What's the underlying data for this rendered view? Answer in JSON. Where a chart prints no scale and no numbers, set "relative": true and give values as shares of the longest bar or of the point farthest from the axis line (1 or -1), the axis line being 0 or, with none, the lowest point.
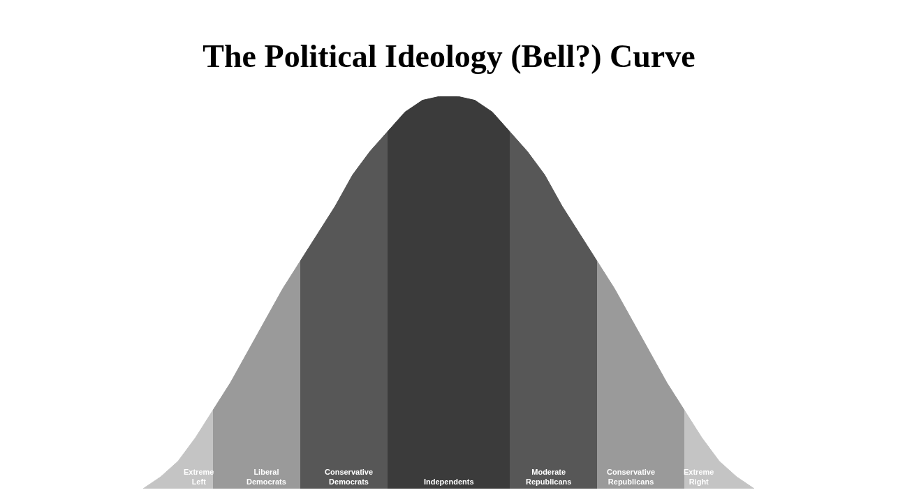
{
  "chart_data": {
    "type": "area",
    "title": "The Political Ideology (Bell?) Curve",
    "relative": true,
    "categories": [
      null,
      null,
      null,
      null,
      null,
      null,
      null,
      null,
      null,
      null,
      null,
      null,
      null,
      null,
      null,
      null,
      null,
      null,
      null,
      null,
      null,
      null,
      null,
      null,
      null,
      null,
      null,
      null,
      null,
      null,
      null,
      null,
      null,
      null,
      null,
      null
    ],
    "series": [
      {
        "name": "Extreme Left",
        "color": "#c4c4c4",
        "values": [
          0,
          0.03,
          0.07,
          0.13,
          0.2,
          null,
          null,
          null,
          null,
          null,
          null,
          null,
          null,
          null,
          null,
          null,
          null,
          null,
          null,
          null,
          null,
          null,
          null,
          null,
          null,
          null,
          null,
          null,
          null,
          null,
          null,
          null,
          null,
          null,
          null,
          null
        ]
      },
      {
        "name": "Liberal Democrats",
        "color": "#9a9a9a",
        "values": [
          null,
          null,
          null,
          null,
          0.2,
          0.27,
          0.35,
          0.43,
          0.51,
          0.58,
          null,
          null,
          null,
          null,
          null,
          null,
          null,
          null,
          null,
          null,
          null,
          null,
          null,
          null,
          null,
          null,
          null,
          null,
          null,
          null,
          null,
          null,
          null,
          null,
          null,
          null
        ]
      },
      {
        "name": "Conservative Democrats",
        "color": "#575757",
        "values": [
          null,
          null,
          null,
          null,
          null,
          null,
          null,
          null,
          null,
          0.58,
          0.65,
          0.72,
          0.8,
          0.86,
          0.91,
          null,
          null,
          null,
          null,
          null,
          null,
          null,
          null,
          null,
          null,
          null,
          null,
          null,
          null,
          null,
          null,
          null,
          null,
          null,
          null,
          null
        ]
      },
      {
        "name": "Independents",
        "color": "#3b3b3b",
        "values": [
          null,
          null,
          null,
          null,
          null,
          null,
          null,
          null,
          null,
          null,
          null,
          null,
          null,
          null,
          0.91,
          0.96,
          0.99,
          1.0,
          1.0,
          0.99,
          0.96,
          0.91,
          null,
          null,
          null,
          null,
          null,
          null,
          null,
          null,
          null,
          null,
          null,
          null,
          null,
          null
        ]
      },
      {
        "name": "Moderate Republicans",
        "color": "#575757",
        "values": [
          null,
          null,
          null,
          null,
          null,
          null,
          null,
          null,
          null,
          null,
          null,
          null,
          null,
          null,
          null,
          null,
          null,
          null,
          null,
          null,
          null,
          0.91,
          0.86,
          0.8,
          0.72,
          0.65,
          0.58,
          null,
          null,
          null,
          null,
          null,
          null,
          null,
          null,
          null
        ]
      },
      {
        "name": "Conservative Republicans",
        "color": "#9a9a9a",
        "values": [
          null,
          null,
          null,
          null,
          null,
          null,
          null,
          null,
          null,
          null,
          null,
          null,
          null,
          null,
          null,
          null,
          null,
          null,
          null,
          null,
          null,
          null,
          null,
          null,
          null,
          null,
          0.58,
          0.51,
          0.43,
          0.35,
          0.27,
          0.2,
          null,
          null,
          null,
          null
        ]
      },
      {
        "name": "Extreme Right",
        "color": "#c4c4c4",
        "values": [
          null,
          null,
          null,
          null,
          null,
          null,
          null,
          null,
          null,
          null,
          null,
          null,
          null,
          null,
          null,
          null,
          null,
          null,
          null,
          null,
          null,
          null,
          null,
          null,
          null,
          null,
          null,
          null,
          null,
          null,
          null,
          0.2,
          0.13,
          0.07,
          0.03,
          0
        ]
      }
    ]
  }
}
